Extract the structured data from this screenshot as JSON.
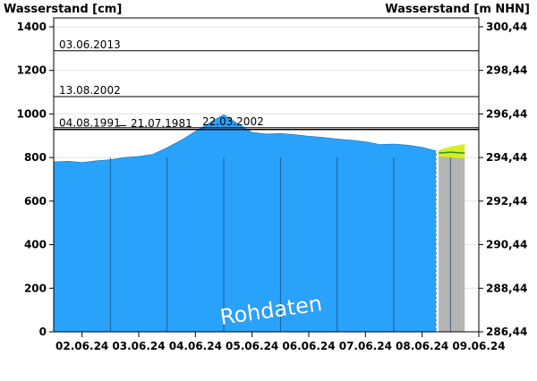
{
  "chart_data": {
    "type": "area",
    "ylabel_left": "Wasserstand [cm]",
    "ylabel_right": "Wasserstand [m NHN]",
    "watermark": "Rohdaten",
    "ylim": [
      0,
      1400
    ],
    "right_ylim": [
      286.44,
      300.44
    ],
    "y_ticks_left": [
      0,
      200,
      400,
      600,
      800,
      1000,
      1200,
      1400
    ],
    "y_ticks_right": [
      "286,44",
      "288,44",
      "290,44",
      "292,44",
      "294,44",
      "296,44",
      "298,44",
      "300,44"
    ],
    "x_range_days": [
      "01.06.24 12:00",
      "09.06.24 00:00"
    ],
    "x_ticks": [
      "02.06.24",
      "03.06.24",
      "04.06.24",
      "05.06.24",
      "06.06.24",
      "07.06.24",
      "08.06.24",
      "09.06.24"
    ],
    "grid": "horizontal",
    "series": [
      {
        "name": "",
        "color": "#29a2fb",
        "x": [
          "01.06.24 12:00",
          "01.06.24 18:00",
          "02.06.24 00:00",
          "02.06.24 06:00",
          "02.06.24 12:00",
          "02.06.24 18:00",
          "03.06.24 00:00",
          "03.06.24 06:00",
          "03.06.24 12:00",
          "03.06.24 18:00",
          "04.06.24 00:00",
          "04.06.24 06:00",
          "04.06.24 12:00",
          "04.06.24 18:00",
          "05.06.24 00:00",
          "05.06.24 06:00",
          "05.06.24 12:00",
          "05.06.24 18:00",
          "06.06.24 00:00",
          "06.06.24 06:00",
          "06.06.24 12:00",
          "06.06.24 18:00",
          "07.06.24 00:00",
          "07.06.24 06:00",
          "07.06.24 12:00",
          "07.06.24 18:00",
          "08.06.24 00:00",
          "08.06.24 06:00"
        ],
        "values": [
          780,
          783,
          777,
          785,
          790,
          800,
          805,
          815,
          845,
          880,
          920,
          960,
          997,
          955,
          915,
          908,
          910,
          905,
          898,
          893,
          885,
          880,
          872,
          860,
          862,
          857,
          847,
          830
        ]
      }
    ],
    "forecast": {
      "x": [
        "08.06.24 07:00",
        "08.06.24 12:00",
        "08.06.24 18:00"
      ],
      "values": [
        820,
        825,
        820
      ],
      "upper": [
        835,
        850,
        862
      ],
      "lower": [
        805,
        800,
        795
      ],
      "band_color": "#d8f01a",
      "line_color": "#2e8b2e",
      "background_color": "#b4b4b4"
    },
    "reference_lines": [
      {
        "label": "03.06.2013",
        "value": 1290
      },
      {
        "label": "13.08.2002",
        "value": 1080
      },
      {
        "label": "22.03.2002",
        "value": 937
      },
      {
        "label": "04.08.1991",
        "value": 930
      },
      {
        "label": "21.07.1981",
        "value": 928
      }
    ]
  }
}
